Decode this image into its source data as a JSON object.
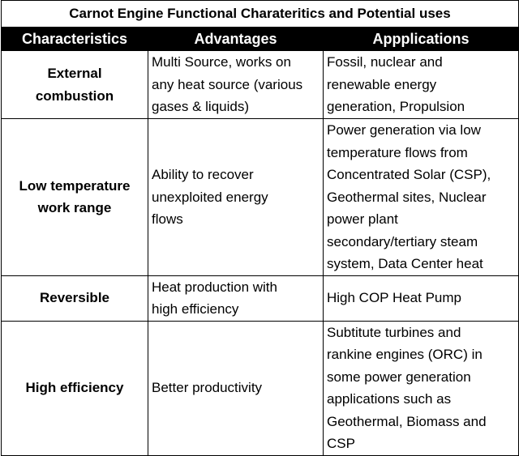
{
  "title": "Carnot Engine Functional Charateritics and Potential uses",
  "headers": [
    "Characteristics",
    "Advantages",
    "Appplications"
  ],
  "rows": [
    {
      "characteristic": [
        "External",
        "combustion"
      ],
      "advantage": [
        "Multi Source, works on",
        "any heat source (various",
        "gases & liquids)"
      ],
      "application": [
        "Fossil, nuclear and",
        "renewable energy",
        "generation, Propulsion"
      ]
    },
    {
      "characteristic": [
        "Low temperature",
        "work range"
      ],
      "advantage": [
        "Ability to recover",
        "unexploited energy",
        "flows"
      ],
      "application": [
        "Power generation via low",
        "temperature flows from",
        "Concentrated Solar (CSP),",
        "Geothermal sites, Nuclear",
        "power plant",
        "secondary/tertiary steam",
        "system, Data Center heat"
      ]
    },
    {
      "characteristic": [
        "Reversible"
      ],
      "advantage": [
        "Heat production with",
        "high efficiency"
      ],
      "application": [
        "High COP Heat Pump"
      ]
    },
    {
      "characteristic": [
        "High efficiency"
      ],
      "advantage": [
        "Better productivity"
      ],
      "application": [
        "Subtitute turbines and",
        "rankine engines (ORC) in",
        "some power generation",
        "applications such as",
        "Geothermal, Biomass and",
        "CSP"
      ]
    }
  ]
}
